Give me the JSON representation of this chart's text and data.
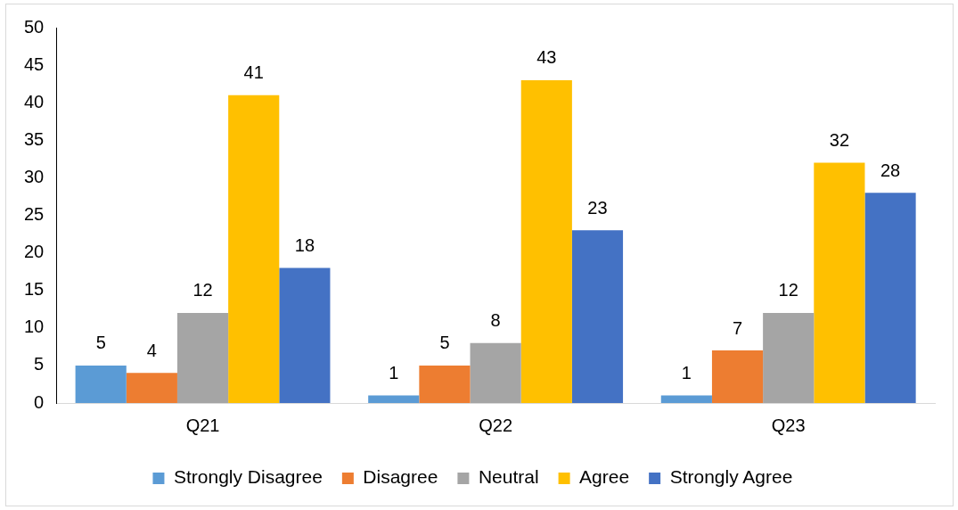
{
  "chart_data": {
    "type": "bar",
    "categories": [
      "Q21",
      "Q22",
      "Q23"
    ],
    "series": [
      {
        "name": "Strongly Disagree",
        "color": "#5b9bd5",
        "values": [
          5,
          1,
          1
        ]
      },
      {
        "name": "Disagree",
        "color": "#ed7d31",
        "values": [
          4,
          5,
          7
        ]
      },
      {
        "name": "Neutral",
        "color": "#a5a5a5",
        "values": [
          12,
          8,
          12
        ]
      },
      {
        "name": "Agree",
        "color": "#ffc000",
        "values": [
          41,
          43,
          32
        ]
      },
      {
        "name": "Strongly Agree",
        "color": "#4472c4",
        "values": [
          18,
          23,
          28
        ]
      }
    ],
    "ylim": [
      0,
      50
    ],
    "yticks": [
      0,
      5,
      10,
      15,
      20,
      25,
      30,
      35,
      40,
      45,
      50
    ],
    "grid": false,
    "legend": "bottom",
    "data_labels": true
  }
}
